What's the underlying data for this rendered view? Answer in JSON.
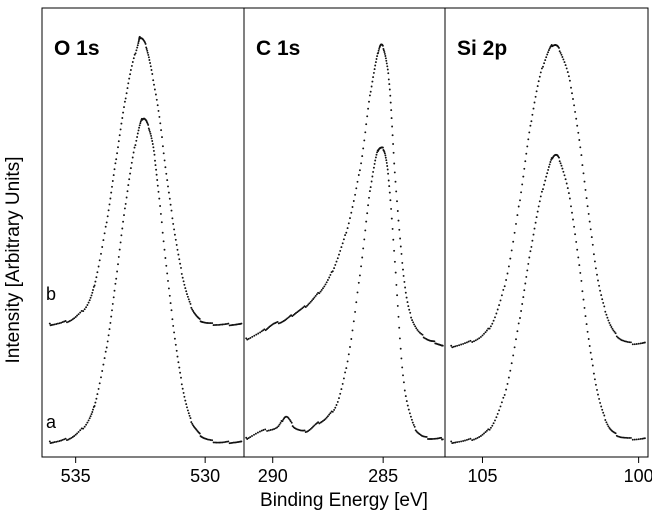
{
  "chart_data": {
    "type": "scatter",
    "xlabel": "Binding Energy [eV]",
    "ylabel": "Intensity [Arbitrary Units]",
    "x_reversed": true,
    "grid": false,
    "curve_labels": [
      "a",
      "b"
    ],
    "panels": [
      {
        "id": "o1s",
        "title": "O 1s",
        "xlim": [
          536.3,
          528.5
        ],
        "xticks": [
          535,
          530
        ],
        "xtick_labels": [
          "535",
          "530"
        ],
        "series": [
          {
            "curve": "a",
            "points": [
              [
                536.0,
                0.02
              ],
              [
                535.5,
                0.025
              ],
              [
                535.0,
                0.04
              ],
              [
                534.5,
                0.08
              ],
              [
                534.2,
                0.14
              ],
              [
                533.8,
                0.28
              ],
              [
                533.5,
                0.43
              ],
              [
                533.2,
                0.6
              ],
              [
                532.9,
                0.75
              ],
              [
                532.6,
                0.86
              ],
              [
                532.4,
                0.9
              ],
              [
                532.2,
                0.88
              ],
              [
                532.0,
                0.82
              ],
              [
                531.8,
                0.7
              ],
              [
                531.5,
                0.5
              ],
              [
                531.2,
                0.32
              ],
              [
                530.9,
                0.18
              ],
              [
                530.6,
                0.09
              ],
              [
                530.3,
                0.05
              ],
              [
                530.0,
                0.03
              ],
              [
                529.5,
                0.02
              ],
              [
                529.0,
                0.02
              ],
              [
                528.6,
                0.02
              ]
            ]
          },
          {
            "curve": "b",
            "points": [
              [
                536.0,
                0.34
              ],
              [
                535.5,
                0.345
              ],
              [
                535.0,
                0.36
              ],
              [
                534.5,
                0.4
              ],
              [
                534.2,
                0.47
              ],
              [
                533.8,
                0.62
              ],
              [
                533.5,
                0.76
              ],
              [
                533.2,
                0.9
              ],
              [
                532.9,
                1.02
              ],
              [
                532.6,
                1.1
              ],
              [
                532.5,
                1.12
              ],
              [
                532.3,
                1.1
              ],
              [
                532.1,
                1.04
              ],
              [
                531.8,
                0.92
              ],
              [
                531.5,
                0.75
              ],
              [
                531.2,
                0.6
              ],
              [
                530.9,
                0.48
              ],
              [
                530.6,
                0.4
              ],
              [
                530.3,
                0.36
              ],
              [
                530.0,
                0.345
              ],
              [
                529.5,
                0.34
              ],
              [
                529.0,
                0.34
              ],
              [
                528.6,
                0.34
              ]
            ]
          }
        ]
      },
      {
        "id": "c1s",
        "title": "C 1s",
        "xlim": [
          291.3,
          282.2
        ],
        "xticks": [
          290,
          285
        ],
        "xtick_labels": [
          "290",
          "285"
        ],
        "series": [
          {
            "curve": "a",
            "points": [
              [
                291.2,
                0.03
              ],
              [
                290.5,
                0.05
              ],
              [
                289.8,
                0.06
              ],
              [
                289.4,
                0.09
              ],
              [
                289.0,
                0.06
              ],
              [
                288.5,
                0.05
              ],
              [
                288.0,
                0.07
              ],
              [
                287.5,
                0.09
              ],
              [
                287.0,
                0.14
              ],
              [
                286.5,
                0.28
              ],
              [
                286.0,
                0.5
              ],
              [
                285.6,
                0.7
              ],
              [
                285.3,
                0.8
              ],
              [
                285.1,
                0.82
              ],
              [
                284.9,
                0.8
              ],
              [
                284.7,
                0.7
              ],
              [
                284.4,
                0.45
              ],
              [
                284.1,
                0.2
              ],
              [
                283.7,
                0.08
              ],
              [
                283.3,
                0.04
              ],
              [
                282.8,
                0.03
              ],
              [
                282.3,
                0.03
              ]
            ]
          },
          {
            "curve": "b",
            "points": [
              [
                291.2,
                0.3
              ],
              [
                290.5,
                0.32
              ],
              [
                290.0,
                0.34
              ],
              [
                289.5,
                0.35
              ],
              [
                289.0,
                0.37
              ],
              [
                288.5,
                0.39
              ],
              [
                288.0,
                0.42
              ],
              [
                287.5,
                0.46
              ],
              [
                287.0,
                0.53
              ],
              [
                286.5,
                0.63
              ],
              [
                286.0,
                0.78
              ],
              [
                285.6,
                0.96
              ],
              [
                285.3,
                1.06
              ],
              [
                285.1,
                1.1
              ],
              [
                284.9,
                1.07
              ],
              [
                284.7,
                0.98
              ],
              [
                284.5,
                0.78
              ],
              [
                284.2,
                0.55
              ],
              [
                283.9,
                0.4
              ],
              [
                283.5,
                0.33
              ],
              [
                283.0,
                0.3
              ],
              [
                282.6,
                0.29
              ],
              [
                282.3,
                0.28
              ]
            ]
          }
        ]
      },
      {
        "id": "si2p",
        "title": "Si 2p",
        "xlim": [
          106.2,
          99.7
        ],
        "xticks": [
          105,
          100
        ],
        "xtick_labels": [
          "105",
          "100"
        ],
        "series": [
          {
            "curve": "a",
            "points": [
              [
                106.0,
                0.02
              ],
              [
                105.5,
                0.025
              ],
              [
                105.0,
                0.04
              ],
              [
                104.6,
                0.08
              ],
              [
                104.2,
                0.18
              ],
              [
                103.8,
                0.36
              ],
              [
                103.5,
                0.52
              ],
              [
                103.2,
                0.66
              ],
              [
                102.9,
                0.76
              ],
              [
                102.7,
                0.8
              ],
              [
                102.5,
                0.78
              ],
              [
                102.2,
                0.68
              ],
              [
                101.9,
                0.5
              ],
              [
                101.6,
                0.3
              ],
              [
                101.3,
                0.15
              ],
              [
                101.0,
                0.07
              ],
              [
                100.7,
                0.04
              ],
              [
                100.3,
                0.03
              ],
              [
                99.8,
                0.03
              ]
            ]
          },
          {
            "curve": "b",
            "points": [
              [
                106.0,
                0.28
              ],
              [
                105.5,
                0.29
              ],
              [
                105.0,
                0.31
              ],
              [
                104.6,
                0.36
              ],
              [
                104.2,
                0.48
              ],
              [
                103.8,
                0.68
              ],
              [
                103.5,
                0.86
              ],
              [
                103.2,
                1.0
              ],
              [
                102.9,
                1.08
              ],
              [
                102.7,
                1.1
              ],
              [
                102.5,
                1.08
              ],
              [
                102.2,
                1.0
              ],
              [
                101.9,
                0.84
              ],
              [
                101.6,
                0.64
              ],
              [
                101.3,
                0.46
              ],
              [
                101.0,
                0.36
              ],
              [
                100.7,
                0.31
              ],
              [
                100.3,
                0.29
              ],
              [
                99.8,
                0.29
              ]
            ]
          }
        ]
      }
    ],
    "ylim": [
      -0.02,
      1.2
    ]
  }
}
